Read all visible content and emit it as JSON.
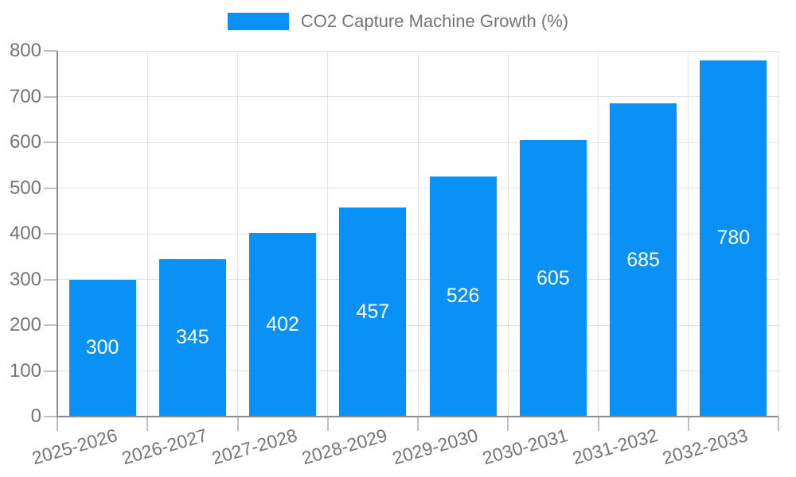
{
  "legend": {
    "label": "CO2 Capture Machine Growth (%)",
    "swatch_color": "#0a91f5"
  },
  "colors": {
    "bar": "#0a91f5",
    "axis_line": "#8c8c8c",
    "gridline": "#e2e2e2",
    "tick_mark": "#c0c0c0",
    "tick_text": "#757575",
    "bar_label_text": "#ffffff",
    "background": "#ffffff"
  },
  "chart_data": {
    "type": "bar",
    "title": "CO2 Capture Machine Growth (%)",
    "categories": [
      "2025-2026",
      "2026-2027",
      "2027-2028",
      "2028-2029",
      "2029-2030",
      "2030-2031",
      "2031-2032",
      "2032-2033"
    ],
    "values": [
      300,
      345,
      402,
      457,
      526,
      605,
      685,
      780
    ],
    "bar_labels": [
      "300",
      "345",
      "402",
      "457",
      "526",
      "605",
      "685",
      "780"
    ],
    "xlabel": "",
    "ylabel": "",
    "ylim": [
      0,
      800
    ],
    "ytick_step": 100,
    "yticks": [
      0,
      100,
      200,
      300,
      400,
      500,
      600,
      700,
      800
    ],
    "grid": true,
    "legend_position": "top-center",
    "bar_label_position": "center"
  }
}
